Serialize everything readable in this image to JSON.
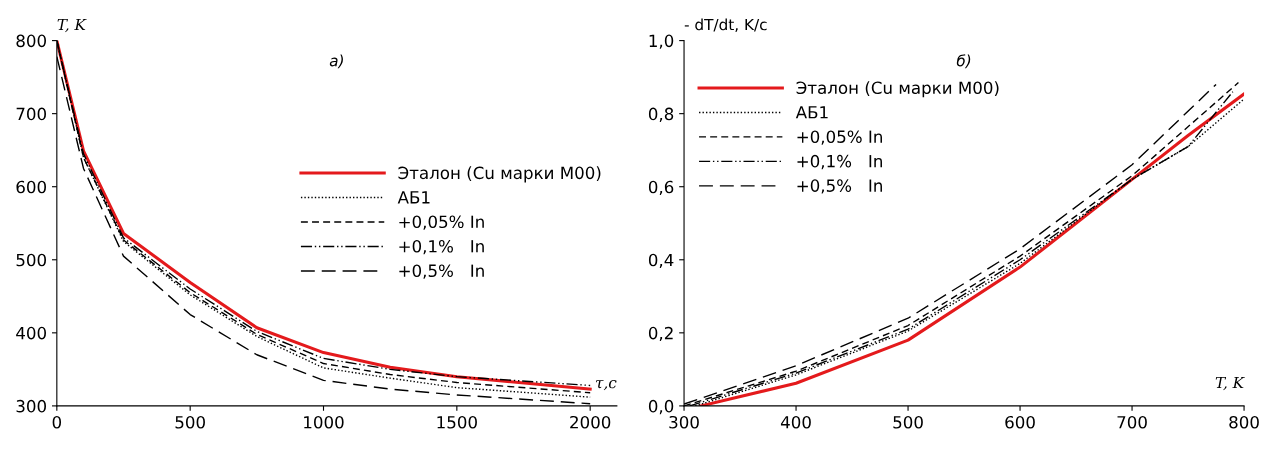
{
  "chart_data": [
    {
      "type": "line",
      "title": "а)",
      "xlabel": "τ,c",
      "ylabel": "T, K",
      "xlim": [
        0,
        2100
      ],
      "ylim": [
        300,
        800
      ],
      "xticks": [
        0,
        500,
        1000,
        1500,
        2000
      ],
      "yticks": [
        300,
        400,
        500,
        600,
        700,
        800
      ],
      "legend": "right",
      "grid": false,
      "series": [
        {
          "name": "Эталон (Cu марки М00)",
          "color": "#e41a1c",
          "line_style": "solid",
          "x": [
            0,
            100,
            250,
            500,
            750,
            1000,
            1250,
            1500,
            2000
          ],
          "values": [
            800,
            649,
            536,
            469,
            407,
            373,
            353,
            340,
            323
          ]
        },
        {
          "name": "АБ1",
          "color": "#000000",
          "line_style": "dotted",
          "x": [
            0,
            100,
            250,
            500,
            750,
            1000,
            1250,
            1500,
            2000
          ],
          "values": [
            800,
            640,
            525,
            452,
            395,
            352,
            338,
            325,
            312
          ]
        },
        {
          "name": "+0,05% In",
          "color": "#000000",
          "line_style": "dashed",
          "x": [
            0,
            100,
            250,
            500,
            750,
            1000,
            1250,
            1500,
            2000
          ],
          "values": [
            800,
            640,
            527,
            455,
            398,
            358,
            343,
            332,
            318
          ]
        },
        {
          "name": "+0,1%   In",
          "color": "#000000",
          "line_style": "dashdotdot",
          "x": [
            0,
            100,
            250,
            500,
            750,
            1000,
            1250,
            1500,
            2000
          ],
          "values": [
            800,
            645,
            530,
            460,
            402,
            365,
            350,
            340,
            328
          ]
        },
        {
          "name": "+0,5%   In",
          "color": "#000000",
          "line_style": "longdash",
          "x": [
            0,
            100,
            250,
            500,
            750,
            1000,
            1250,
            1500,
            2000
          ],
          "values": [
            778,
            625,
            505,
            425,
            370,
            335,
            323,
            315,
            303
          ]
        }
      ]
    },
    {
      "type": "line",
      "title": "б)",
      "xlabel": "T, K",
      "ylabel": "- dT/dt, K/c",
      "xlim": [
        300,
        800
      ],
      "ylim": [
        0,
        1.0
      ],
      "xticks": [
        300,
        400,
        500,
        600,
        700,
        800
      ],
      "yticks": [
        {
          "value": 0,
          "label": "0,0"
        },
        {
          "value": 0.2,
          "label": "0,2"
        },
        {
          "value": 0.4,
          "label": "0,4"
        },
        {
          "value": 0.6,
          "label": "0,6"
        },
        {
          "value": 0.8,
          "label": "0,8"
        },
        {
          "value": 1.0,
          "label": "1,0"
        }
      ],
      "legend": "top left",
      "grid": false,
      "series": [
        {
          "name": "Эталон (Cu марки М00)",
          "color": "#e41a1c",
          "line_style": "solid",
          "x": [
            315,
            400,
            500,
            600,
            650,
            700,
            750,
            800
          ],
          "values": [
            0,
            0.062,
            0.18,
            0.38,
            0.5,
            0.62,
            0.74,
            0.854
          ]
        },
        {
          "name": "АБ1",
          "color": "#000000",
          "line_style": "dotted",
          "x": [
            310,
            400,
            500,
            600,
            700,
            750,
            800
          ],
          "values": [
            0,
            0.085,
            0.205,
            0.39,
            0.62,
            0.71,
            0.84
          ]
        },
        {
          "name": "+0,05% In",
          "color": "#000000",
          "line_style": "dashed",
          "x": [
            300,
            400,
            500,
            600,
            700,
            795
          ],
          "values": [
            0,
            0.095,
            0.22,
            0.41,
            0.63,
            0.885
          ]
        },
        {
          "name": "+0,1%   In",
          "color": "#000000",
          "line_style": "dashdotdot",
          "x": [
            305,
            400,
            500,
            600,
            700,
            750,
            790
          ],
          "values": [
            0,
            0.09,
            0.21,
            0.4,
            0.62,
            0.71,
            0.86
          ]
        },
        {
          "name": "+0,5%   In",
          "color": "#000000",
          "line_style": "longdash",
          "x": [
            300,
            400,
            500,
            600,
            700,
            775
          ],
          "values": [
            0.005,
            0.11,
            0.24,
            0.43,
            0.66,
            0.88
          ]
        }
      ]
    }
  ]
}
